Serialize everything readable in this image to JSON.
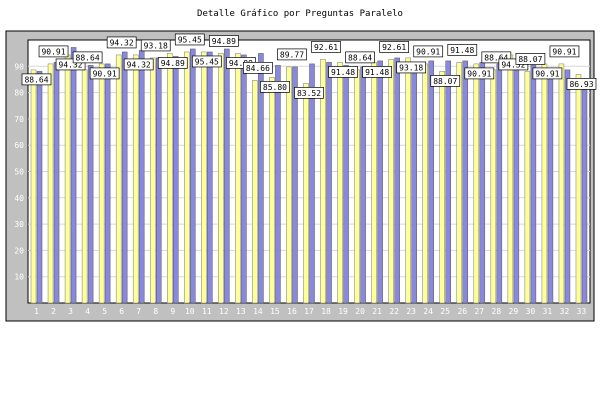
{
  "chart_data": {
    "type": "bar",
    "title": "Detalle Gráfico por Preguntas Paralelo",
    "xlabel": "",
    "ylabel": "",
    "ylim": [
      0,
      100
    ],
    "yticks": [
      10,
      20,
      30,
      40,
      50,
      60,
      70,
      80,
      90
    ],
    "grid": true,
    "legend": "none",
    "categories": [
      "1",
      "2",
      "3",
      "4",
      "5",
      "6",
      "7",
      "8",
      "9",
      "10",
      "11",
      "12",
      "13",
      "14",
      "15",
      "16",
      "17",
      "18",
      "19",
      "20",
      "21",
      "22",
      "23",
      "24",
      "25",
      "26",
      "27",
      "28",
      "29",
      "30",
      "31",
      "32",
      "33"
    ],
    "series": [
      {
        "color": "#ffff99",
        "values": [
          88.64,
          90.91,
          94.32,
          88.64,
          90.91,
          94.32,
          94.32,
          93.18,
          94.89,
          95.45,
          95.45,
          94.89,
          94.89,
          84.66,
          85.8,
          89.77,
          83.52,
          92.61,
          91.48,
          88.64,
          91.48,
          92.61,
          93.18,
          90.91,
          88.07,
          91.48,
          90.91,
          88.64,
          94.32,
          88.07,
          90.91,
          90.91,
          86.93
        ]
      },
      {
        "color": "#8888dd",
        "values": [
          88.07,
          91.48,
          97.16,
          90.34,
          90.91,
          95.45,
          96.02,
          93.18,
          93.75,
          96.59,
          95.45,
          96.59,
          94.32,
          94.89,
          90.34,
          89.77,
          90.91,
          91.48,
          90.34,
          89.77,
          92.05,
          93.18,
          91.48,
          92.05,
          92.05,
          92.05,
          91.48,
          90.91,
          90.91,
          90.34,
          88.07,
          88.64,
          84.09
        ]
      }
    ],
    "label_text": [
      "88.64",
      "90.91",
      "94.32",
      "88.64",
      "90.91",
      "94.32",
      "94.32",
      "93.18",
      "94.89",
      "95.45",
      "95.45",
      "94.89",
      "94.89",
      "84.66",
      "85.80",
      "89.77",
      "83.52",
      "92.61",
      "91.48",
      "88.64",
      "91.48",
      "92.61",
      "93.18",
      "90.91",
      "88.07",
      "91.48",
      "90.91",
      "88.64",
      "94.32",
      "88.07",
      "90.91",
      "90.91",
      "86.93"
    ]
  }
}
